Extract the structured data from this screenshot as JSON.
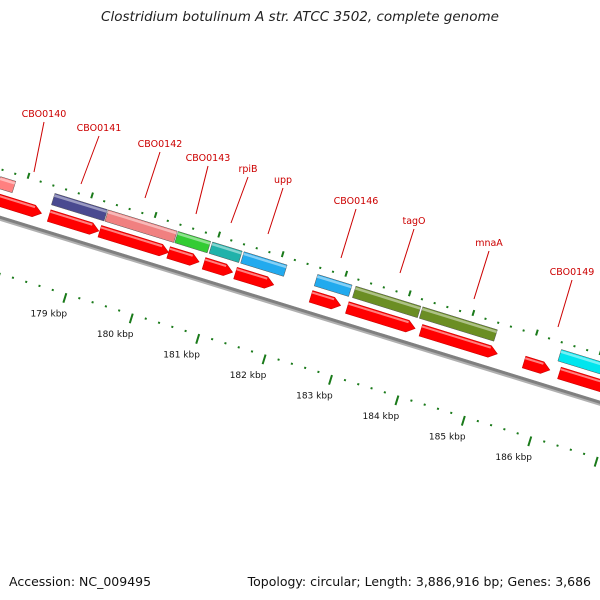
{
  "title": "Clostridium botulinum A str. ATCC 3502, complete genome",
  "footer": {
    "accession": "Accession: NC_009495",
    "stats": "Topology: circular; Length: 3,886,916 bp; Genes: 3,686"
  },
  "colors": {
    "backbone": "#808080",
    "cds_red": "#ff0000",
    "label_red": "#cc0000",
    "tick_green": "#1a7a1a",
    "navy": "#4a4a90",
    "salmon": "#f08080",
    "green": "#33cc33",
    "teal": "#20b2aa",
    "sky": "#22aaee",
    "olive": "#6b8e23",
    "cyan": "#00e5ee"
  },
  "gene_labels": [
    "CBO0140",
    "CBO0141",
    "CBO0142",
    "CBO0143",
    "rpiB",
    "upp",
    "CBO0146",
    "tagO",
    "mnaA",
    "CBO0149"
  ],
  "scale_labels": [
    "179 kbp",
    "180 kbp",
    "181 kbp",
    "182 kbp",
    "183 kbp",
    "184 kbp",
    "185 kbp",
    "186 kbp"
  ]
}
